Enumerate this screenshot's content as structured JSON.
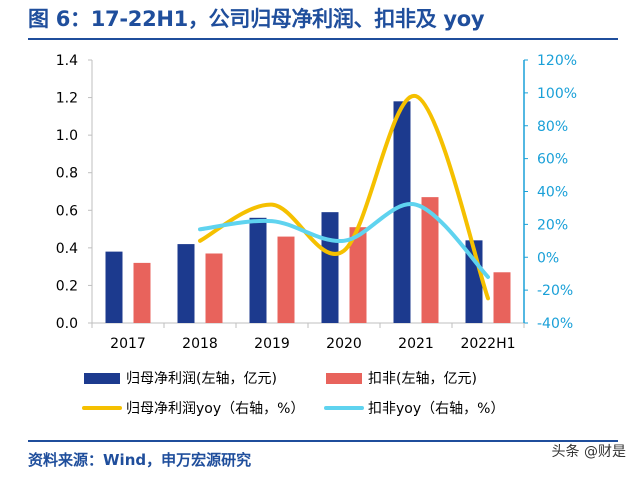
{
  "figure": {
    "title": "图 6：17-22H1，公司归母净利润、扣非及 yoy",
    "source": "资料来源：Wind，申万宏源研究",
    "watermark": "头条 @财是"
  },
  "chart_data": {
    "type": "bar",
    "categories": [
      "2017",
      "2018",
      "2019",
      "2020",
      "2021",
      "2022H1"
    ],
    "series": [
      {
        "name": "归母净利润(左轴，亿元)",
        "kind": "bar",
        "axis": "left",
        "color": "#1c3a8e",
        "values": [
          0.38,
          0.42,
          0.56,
          0.59,
          1.18,
          0.44
        ]
      },
      {
        "name": "扣非(左轴，亿元)",
        "kind": "bar",
        "axis": "left",
        "color": "#e8635c",
        "values": [
          0.32,
          0.37,
          0.46,
          0.51,
          0.67,
          0.27
        ]
      },
      {
        "name": "归母净利润yoy（右轴，%）",
        "kind": "line",
        "axis": "right",
        "color": "#f5c000",
        "values": [
          null,
          10,
          32,
          4,
          98,
          -25
        ]
      },
      {
        "name": "扣非yoy（右轴，%）",
        "kind": "line",
        "axis": "right",
        "color": "#5fd3ef",
        "values": [
          null,
          17,
          22,
          10,
          32,
          -12
        ]
      }
    ],
    "y_left": {
      "min": 0,
      "max": 1.4,
      "step": 0.2,
      "ticks": [
        "0.0",
        "0.2",
        "0.4",
        "0.6",
        "0.8",
        "1.0",
        "1.2",
        "1.4"
      ]
    },
    "y_right": {
      "min": -40,
      "max": 120,
      "step": 20,
      "ticks": [
        "-40%",
        "-20%",
        "0%",
        "20%",
        "40%",
        "60%",
        "80%",
        "100%",
        "120%"
      ]
    },
    "grid": false,
    "legend_position": "bottom",
    "axis_colors": {
      "left": "#000000",
      "right": "#1aa0d8"
    }
  }
}
